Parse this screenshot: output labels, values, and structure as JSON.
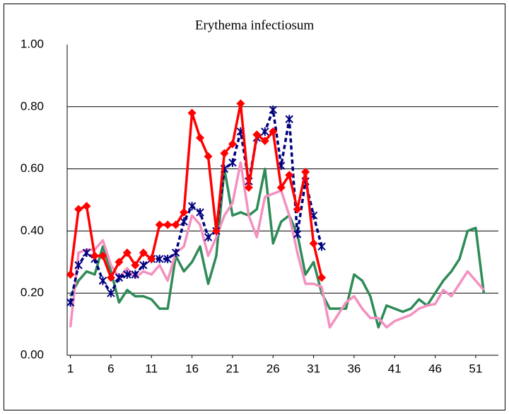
{
  "chart_data": {
    "type": "line",
    "title": "Erythema infectiosum",
    "x": [
      1,
      2,
      3,
      4,
      5,
      6,
      7,
      8,
      9,
      10,
      11,
      12,
      13,
      14,
      15,
      16,
      17,
      18,
      19,
      20,
      21,
      22,
      23,
      24,
      25,
      26,
      27,
      28,
      29,
      30,
      31,
      32,
      33,
      34,
      35,
      36,
      37,
      38,
      39,
      40,
      41,
      42,
      43,
      44,
      45,
      46,
      47,
      48,
      49,
      50,
      51,
      52
    ],
    "xlim": [
      0.6,
      53.8
    ],
    "xticks": [
      1,
      6,
      11,
      16,
      21,
      26,
      31,
      36,
      41,
      46,
      51
    ],
    "ylim": [
      0,
      1
    ],
    "yticks": [
      {
        "value": 0,
        "label": "0.00"
      },
      {
        "value": 0.2,
        "label": "0.20"
      },
      {
        "value": 0.4,
        "label": "0.40"
      },
      {
        "value": 0.6,
        "label": "0.60"
      },
      {
        "value": 0.8,
        "label": "0.80"
      },
      {
        "value": 1,
        "label": "1.00"
      }
    ],
    "grid": true,
    "series": [
      {
        "color": "#2e8b57",
        "marker": "none",
        "dash": false,
        "values": [
          0.19,
          0.24,
          0.27,
          0.26,
          0.35,
          0.27,
          0.17,
          0.21,
          0.19,
          0.19,
          0.18,
          0.15,
          0.15,
          0.32,
          0.27,
          0.3,
          0.35,
          0.23,
          0.32,
          0.6,
          0.45,
          0.46,
          0.45,
          0.47,
          0.6,
          0.36,
          0.43,
          0.45,
          0.39,
          0.26,
          0.3,
          0.2,
          0.15,
          0.15,
          0.15,
          0.26,
          0.24,
          0.19,
          0.09,
          0.16,
          0.15,
          0.14,
          0.15,
          0.18,
          0.16,
          0.2,
          0.24,
          0.27,
          0.31,
          0.4,
          0.41,
          0.2
        ]
      },
      {
        "color": "#f490c0",
        "marker": "none",
        "dash": false,
        "values": [
          0.09,
          0.33,
          0.34,
          0.34,
          0.37,
          0.29,
          0.25,
          0.28,
          0.25,
          0.27,
          0.26,
          0.29,
          0.24,
          0.33,
          0.35,
          0.45,
          0.42,
          0.32,
          0.38,
          0.45,
          0.49,
          0.62,
          0.45,
          0.38,
          0.51,
          0.52,
          0.53,
          0.45,
          0.33,
          0.23,
          0.23,
          0.22,
          0.09,
          0.13,
          0.17,
          0.19,
          0.15,
          0.12,
          0.12,
          0.09,
          0.11,
          0.12,
          0.13,
          0.15,
          0.16,
          0.165,
          0.21,
          0.19,
          0.23,
          0.27,
          0.24,
          0.21
        ]
      },
      {
        "color": "#000080",
        "marker": "asterisk",
        "dash": true,
        "values": [
          0.17,
          0.29,
          0.33,
          0.31,
          0.24,
          0.2,
          0.25,
          0.26,
          0.26,
          0.29,
          0.31,
          0.31,
          0.31,
          0.33,
          0.43,
          0.48,
          0.46,
          0.38,
          0.4,
          0.6,
          0.62,
          0.72,
          0.56,
          0.7,
          0.72,
          0.79,
          0.61,
          0.76,
          0.39,
          0.56,
          0.45,
          0.35,
          null,
          null,
          null,
          null,
          null,
          null,
          null,
          null,
          null,
          null,
          null,
          null,
          null,
          null,
          null,
          null,
          null,
          null,
          null,
          null
        ]
      },
      {
        "color": "#ff0000",
        "marker": "diamond",
        "dash": false,
        "values": [
          0.26,
          0.47,
          0.48,
          0.32,
          0.32,
          0.25,
          0.3,
          0.33,
          0.29,
          0.33,
          0.31,
          0.42,
          0.42,
          0.42,
          0.46,
          0.78,
          0.7,
          0.64,
          0.4,
          0.65,
          0.68,
          0.81,
          0.54,
          0.71,
          0.69,
          0.72,
          0.54,
          0.58,
          0.47,
          0.59,
          0.36,
          0.25,
          null,
          null,
          null,
          null,
          null,
          null,
          null,
          null,
          null,
          null,
          null,
          null,
          null,
          null,
          null,
          null,
          null,
          null,
          null,
          null
        ]
      }
    ]
  }
}
